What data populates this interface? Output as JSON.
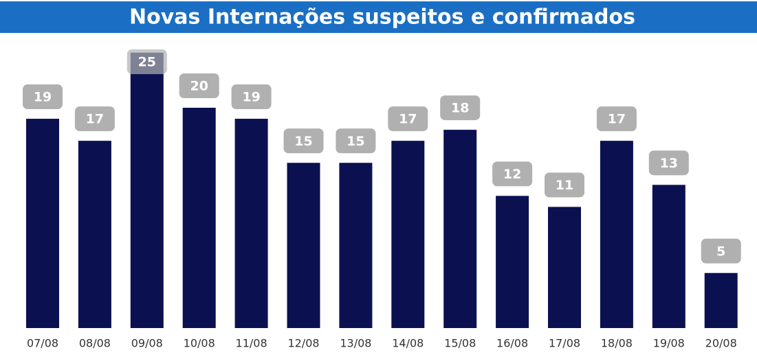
{
  "chart_data": {
    "type": "bar",
    "title": "Novas Internações suspeitos e confirmados",
    "categories": [
      "07/08",
      "08/08",
      "09/08",
      "10/08",
      "11/08",
      "12/08",
      "13/08",
      "14/08",
      "15/08",
      "16/08",
      "17/08",
      "18/08",
      "19/08",
      "20/08"
    ],
    "values": [
      19,
      17,
      25,
      20,
      19,
      15,
      15,
      17,
      18,
      12,
      11,
      17,
      13,
      5
    ],
    "color": "#0b1150"
  }
}
